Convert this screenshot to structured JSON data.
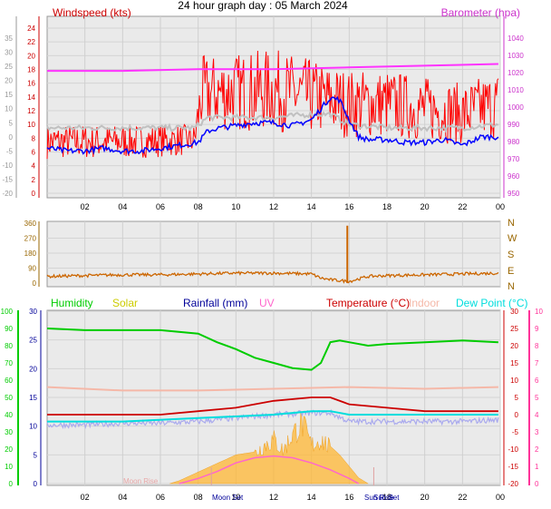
{
  "title": "24 hour graph day : 05 March 2024",
  "colors": {
    "wind_speed": "#ff0000",
    "wind_avg": "#c0c0c0",
    "wind_dir_line": "#0000ff",
    "barometer": "#ff33ff",
    "wind_direction": "#cc6600",
    "humidity": "#00cc00",
    "solar": "#ffb733",
    "rainfall": "#000099",
    "uv": "#ff66cc",
    "temperature": "#cc0000",
    "indoor": "#f5b8a8",
    "dew_point": "#00dddd",
    "axis_left1": "#cc0000",
    "axis_right1": "#cc33cc",
    "axis_gray": "#999999",
    "axis_dir": "#996600",
    "axis_green": "#00cc00",
    "axis_blue": "#000099",
    "axis_red": "#cc0000",
    "axis_pink": "#ff3399"
  },
  "time_labels": [
    "02",
    "04",
    "06",
    "08",
    "10",
    "12",
    "14",
    "16",
    "18",
    "20",
    "22",
    "00"
  ],
  "chart_data": [
    {
      "type": "line",
      "title": "24 hour graph day : 05 March 2024",
      "x_unit": "hour",
      "legend": {
        "left": "Windspeed (kts)",
        "right": "Barometer (hpa)"
      },
      "axes": {
        "left_outer": {
          "ticks": [
            "35",
            "30",
            "25",
            "20",
            "15",
            "10",
            "5",
            "0",
            "-5",
            "-10",
            "-15",
            "-20"
          ],
          "range": [
            -20,
            35
          ]
        },
        "left_inner": {
          "ticks": [
            "24",
            "22",
            "20",
            "18",
            "16",
            "14",
            "12",
            "10",
            "8",
            "6",
            "4",
            "2",
            "0"
          ],
          "range": [
            0,
            25
          ],
          "label": "Windspeed (kts)"
        },
        "right": {
          "ticks": [
            "1040",
            "1030",
            "1020",
            "1010",
            "1000",
            "990",
            "980",
            "970",
            "960",
            "950"
          ],
          "range": [
            945,
            1046
          ],
          "label": "Barometer (hpa)"
        }
      },
      "series": [
        {
          "name": "Windspeed (kts)",
          "axis": "left_inner",
          "x": [
            0,
            1,
            2,
            3,
            4,
            5,
            6,
            7,
            7.8,
            8.2,
            9,
            10,
            11,
            12,
            13,
            14,
            14.5,
            15,
            15.5,
            16,
            16.5,
            17,
            18,
            19,
            20,
            21,
            22,
            23,
            23.9
          ],
          "values": [
            8,
            8.5,
            8,
            8.5,
            9,
            8.5,
            8.5,
            8.5,
            9,
            14,
            16,
            15,
            15,
            14,
            15,
            15,
            16,
            15.5,
            15,
            12,
            11,
            12,
            12,
            12,
            11,
            11,
            10,
            12,
            13
          ]
        },
        {
          "name": "Gust band low",
          "axis": "left_inner",
          "x": [
            0,
            4,
            7.8,
            8.2,
            12,
            16,
            18,
            22,
            23.9
          ],
          "values": [
            5,
            5,
            5.5,
            9,
            9,
            8,
            8,
            7,
            8
          ]
        },
        {
          "name": "Gust band high",
          "axis": "left_inner",
          "x": [
            0,
            4,
            7.8,
            8.2,
            12,
            16,
            18,
            22,
            23.9
          ],
          "values": [
            10,
            10,
            10,
            20,
            21,
            18,
            18,
            16,
            18
          ]
        },
        {
          "name": "Average wind",
          "axis": "left_inner",
          "x": [
            0,
            4,
            7.8,
            8.5,
            10,
            12,
            14,
            15,
            16,
            18,
            20,
            22,
            23.9
          ],
          "values": [
            9.5,
            9.5,
            9.5,
            11,
            11,
            11,
            11.5,
            11.5,
            10,
            9.5,
            9.5,
            9.5,
            10
          ]
        },
        {
          "name": "Wind lull",
          "axis": "left_outer",
          "x": [
            0,
            1,
            2,
            3,
            4,
            5,
            6,
            7,
            8,
            8.5,
            9,
            10,
            11,
            12,
            13,
            14,
            14.5,
            15,
            15.5,
            16,
            16.5,
            17,
            18,
            19,
            20,
            21,
            22,
            23,
            23.9
          ],
          "values": [
            -4,
            -5,
            -5,
            -4,
            -5,
            -5,
            -4,
            -3,
            -2,
            2,
            3,
            4,
            5,
            5,
            4,
            6,
            10,
            14,
            13,
            6,
            0,
            -1,
            -1,
            -2,
            -2,
            -1,
            -3,
            0,
            0
          ]
        },
        {
          "name": "Barometer (hpa)",
          "axis": "right",
          "x": [
            0,
            4,
            8,
            12,
            16,
            20,
            23.9
          ],
          "values": [
            1021,
            1021,
            1022,
            1022,
            1023,
            1024,
            1025
          ]
        }
      ]
    },
    {
      "type": "line",
      "x_unit": "hour",
      "axes": {
        "left": {
          "ticks": [
            "360",
            "270",
            "180",
            "90",
            "0"
          ],
          "range": [
            0,
            360
          ]
        },
        "right": {
          "ticks": [
            "N",
            "W",
            "S",
            "E",
            "N"
          ]
        }
      },
      "series": [
        {
          "name": "Wind direction",
          "x": [
            0,
            2,
            4,
            6,
            8,
            10,
            12,
            14,
            14.5,
            15,
            15.5,
            16,
            16.5,
            17,
            18,
            20,
            22,
            23.9
          ],
          "values": [
            40,
            45,
            50,
            50,
            55,
            60,
            60,
            55,
            30,
            20,
            15,
            10,
            25,
            40,
            45,
            50,
            55,
            60
          ],
          "spike": {
            "x": 15.9,
            "value": 345
          }
        }
      ]
    },
    {
      "type": "line",
      "x_unit": "hour",
      "legend": [
        "Humidity",
        "Solar",
        "Rainfall (mm)",
        "UV",
        "Temperature (°C)",
        "Indoor",
        "Dew Point (°C)"
      ],
      "axes": {
        "left_outer": {
          "ticks": [
            "100",
            "90",
            "80",
            "70",
            "60",
            "50",
            "40",
            "30",
            "20",
            "10",
            "0"
          ],
          "range": [
            0,
            100
          ]
        },
        "left_inner": {
          "ticks": [
            "30",
            "25",
            "20",
            "15",
            "10",
            "5",
            "0"
          ],
          "range": [
            0,
            30
          ]
        },
        "right_inner": {
          "ticks": [
            "30",
            "25",
            "20",
            "15",
            "10",
            "5",
            "0",
            "-5",
            "-10",
            "-15",
            "-20"
          ],
          "range": [
            -20,
            30
          ]
        },
        "right_outer": {
          "ticks": [
            "10",
            "9",
            "8",
            "7",
            "6",
            "5",
            "4",
            "3",
            "2",
            "1",
            "0"
          ],
          "range": [
            0,
            10
          ]
        }
      },
      "markers": [
        "Moon Rise",
        "Moon Set",
        "Sun Rise",
        "Sun Set"
      ],
      "series": [
        {
          "name": "Humidity",
          "axis": "left_outer",
          "x": [
            0,
            2,
            4,
            6,
            8,
            9,
            10,
            11,
            12,
            13,
            14,
            14.5,
            15,
            15.5,
            16,
            17,
            18,
            20,
            22,
            23.9
          ],
          "values": [
            90,
            89,
            89,
            89,
            87,
            82,
            78,
            73,
            70,
            67,
            66,
            70,
            82,
            83,
            82,
            80,
            81,
            82,
            83,
            82
          ]
        },
        {
          "name": "Temperature (°C)",
          "axis": "right_inner",
          "x": [
            0,
            2,
            4,
            6,
            8,
            10,
            12,
            14,
            15,
            16,
            18,
            20,
            22,
            23.9
          ],
          "values": [
            0,
            0,
            0,
            0,
            1,
            2,
            4,
            5,
            5,
            3,
            2,
            1,
            1,
            1
          ]
        },
        {
          "name": "Indoor",
          "axis": "right_inner",
          "x": [
            0,
            4,
            8,
            12,
            16,
            20,
            23.9
          ],
          "values": [
            8,
            7,
            7,
            7.5,
            8,
            7.5,
            8
          ]
        },
        {
          "name": "Dew Point (°C)",
          "axis": "right_inner",
          "x": [
            0,
            4,
            8,
            12,
            14,
            15,
            16,
            18,
            20,
            22,
            23.9
          ],
          "values": [
            -2,
            -2,
            -1,
            0,
            1,
            1,
            0,
            0,
            0,
            0,
            0
          ]
        },
        {
          "name": "Lavender trace",
          "axis": "right_inner",
          "x": [
            0,
            2,
            4,
            6,
            8,
            10,
            12,
            14,
            15,
            16,
            18,
            20,
            22,
            23.9
          ],
          "values": [
            -3,
            -3,
            -2.5,
            -2.5,
            -2,
            -1,
            0,
            0.5,
            0.5,
            -2,
            -2,
            -2,
            -2,
            -1.5
          ]
        },
        {
          "name": "Solar",
          "axis": "left_inner",
          "type": "area",
          "x": [
            6.5,
            7,
            8,
            9,
            10,
            11,
            11.5,
            12,
            12.5,
            13,
            13.5,
            14,
            14.5,
            15,
            15.5,
            16,
            16.5,
            17
          ],
          "values": [
            0,
            0.5,
            2,
            3.5,
            5,
            5.5,
            7,
            8,
            6,
            9,
            11,
            7,
            8,
            6.5,
            5,
            3,
            1,
            0
          ]
        },
        {
          "name": "UV",
          "axis": "right_outer",
          "x": [
            7,
            8,
            9,
            10,
            11,
            12,
            13,
            14,
            15,
            16,
            16.5
          ],
          "values": [
            0,
            0.3,
            0.7,
            1.2,
            1.5,
            1.6,
            1.5,
            1.2,
            0.8,
            0.3,
            0
          ]
        }
      ]
    }
  ]
}
